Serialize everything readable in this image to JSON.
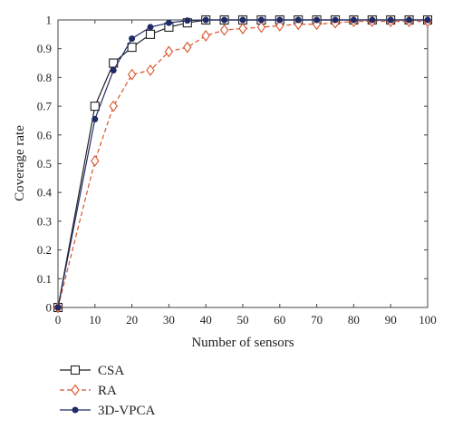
{
  "chart_data": {
    "type": "line",
    "title": "",
    "xlabel": "Number of sensors",
    "ylabel": "Coverage rate",
    "xlim": [
      0,
      100
    ],
    "ylim": [
      0,
      1
    ],
    "xticks": [
      "0",
      "10",
      "20",
      "30",
      "40",
      "50",
      "60",
      "70",
      "80",
      "90",
      "100"
    ],
    "yticks": [
      "0",
      "0.1",
      "0.2",
      "0.3",
      "0.4",
      "0.5",
      "0.6",
      "0.7",
      "0.8",
      "0.9",
      "1"
    ],
    "grid": false,
    "legend_position": "below-left",
    "x": [
      0,
      10,
      15,
      20,
      25,
      30,
      35,
      40,
      45,
      50,
      55,
      60,
      65,
      70,
      75,
      80,
      85,
      90,
      95,
      100
    ],
    "series": [
      {
        "name": "CSA",
        "color": "#222222",
        "line_style": "solid",
        "marker": "square-open",
        "values": [
          0.0,
          0.7,
          0.85,
          0.905,
          0.95,
          0.975,
          0.99,
          1.0,
          1.0,
          1.0,
          1.0,
          1.0,
          1.0,
          1.0,
          1.0,
          1.0,
          1.0,
          1.0,
          1.0,
          1.0
        ]
      },
      {
        "name": "RA",
        "color": "#d9542b",
        "line_style": "dashed",
        "marker": "diamond-open",
        "values": [
          0.0,
          0.51,
          0.7,
          0.81,
          0.825,
          0.89,
          0.905,
          0.945,
          0.965,
          0.97,
          0.975,
          0.98,
          0.985,
          0.985,
          0.99,
          0.995,
          0.995,
          0.995,
          0.995,
          0.995
        ]
      },
      {
        "name": "3D-VPCA",
        "color": "#1f2a66",
        "line_style": "solid",
        "marker": "dot-filled",
        "values": [
          0.0,
          0.655,
          0.825,
          0.935,
          0.975,
          0.99,
          0.998,
          1.0,
          1.0,
          1.0,
          1.0,
          1.0,
          1.0,
          1.0,
          1.0,
          1.0,
          1.0,
          1.0,
          1.0,
          1.0
        ]
      }
    ]
  }
}
